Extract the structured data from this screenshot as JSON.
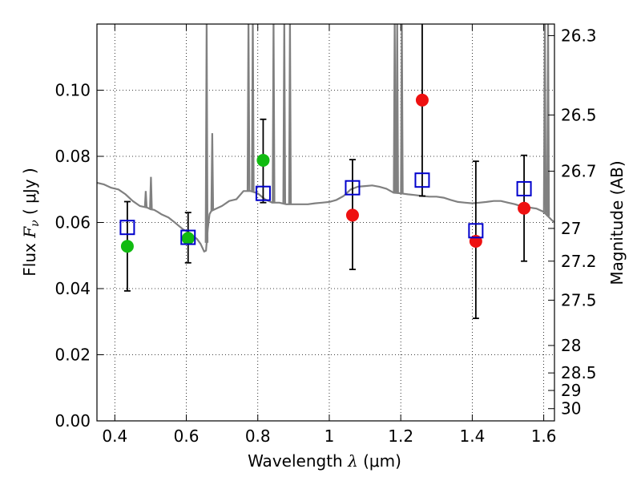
{
  "chart_data": {
    "type": "scatter",
    "xlabel": {
      "prefix": "Wavelength  ",
      "symbol": "λ",
      "unit": " (μm)"
    },
    "ylabel": {
      "prefix": "Flux  ",
      "symbol": "F",
      "sub": "ν",
      "unit": "  ( μJy )"
    },
    "y2label": "Magnitude (AB)",
    "xlim": [
      0.35,
      1.63
    ],
    "ylim": [
      0.0,
      0.12
    ],
    "xticks": [
      0.4,
      0.6,
      0.8,
      1.0,
      1.2,
      1.4,
      1.6
    ],
    "xtick_labels": [
      "0.4",
      "0.6",
      "0.8",
      "1",
      "1.2",
      "1.4",
      "1.6"
    ],
    "yticks": [
      0.0,
      0.02,
      0.04,
      0.06,
      0.08,
      0.1
    ],
    "ytick_labels": [
      "0.00",
      "0.02",
      "0.04",
      "0.06",
      "0.08",
      "0.10"
    ],
    "y2ticks": [
      {
        "flux": 0.1165,
        "label": "26.3"
      },
      {
        "flux": 0.0925,
        "label": "26.5"
      },
      {
        "flux": 0.0755,
        "label": "26.7"
      },
      {
        "flux": 0.0582,
        "label": "27"
      },
      {
        "flux": 0.0483,
        "label": "27.2"
      },
      {
        "flux": 0.0365,
        "label": "27.5"
      },
      {
        "flux": 0.0228,
        "label": "28"
      },
      {
        "flux": 0.0145,
        "label": "28.5"
      },
      {
        "flux": 0.0092,
        "label": "29"
      },
      {
        "flux": 0.0037,
        "label": "30"
      }
    ],
    "grid": true,
    "colors": {
      "model": "#808080",
      "model_photometry": "#0000cc",
      "detection": "#11bb11",
      "other": "#ee1111",
      "errorbar": "#000000"
    },
    "model_spectrum": {
      "x": [
        0.35,
        0.37,
        0.39,
        0.41,
        0.43,
        0.45,
        0.47,
        0.49,
        0.5,
        0.51,
        0.52,
        0.53,
        0.55,
        0.57,
        0.59,
        0.61,
        0.62,
        0.63,
        0.64,
        0.65,
        0.655,
        0.66,
        0.665,
        0.67,
        0.68,
        0.7,
        0.72,
        0.74,
        0.76,
        0.78,
        0.8,
        0.82,
        0.84,
        0.86,
        0.88,
        0.9,
        0.92,
        0.94,
        0.96,
        0.98,
        1.0,
        1.02,
        1.04,
        1.06,
        1.08,
        1.1,
        1.12,
        1.14,
        1.16,
        1.18,
        1.2,
        1.22,
        1.24,
        1.26,
        1.28,
        1.3,
        1.32,
        1.34,
        1.36,
        1.38,
        1.4,
        1.42,
        1.44,
        1.46,
        1.48,
        1.5,
        1.52,
        1.54,
        1.56,
        1.58,
        1.6,
        1.62,
        1.63
      ],
      "y": [
        0.072,
        0.0715,
        0.0705,
        0.07,
        0.0685,
        0.0665,
        0.065,
        0.0645,
        0.064,
        0.0638,
        0.0632,
        0.0625,
        0.0615,
        0.0598,
        0.058,
        0.0568,
        0.0558,
        0.055,
        0.0535,
        0.0512,
        0.0515,
        0.058,
        0.0625,
        0.0635,
        0.064,
        0.065,
        0.0665,
        0.067,
        0.0695,
        0.0695,
        0.0688,
        0.067,
        0.066,
        0.066,
        0.0655,
        0.0655,
        0.0655,
        0.0655,
        0.0658,
        0.066,
        0.0662,
        0.0668,
        0.068,
        0.07,
        0.0708,
        0.071,
        0.0712,
        0.0708,
        0.0702,
        0.069,
        0.0688,
        0.0685,
        0.0683,
        0.068,
        0.0678,
        0.0678,
        0.0675,
        0.0668,
        0.0662,
        0.066,
        0.0658,
        0.066,
        0.0662,
        0.0665,
        0.0665,
        0.066,
        0.0655,
        0.0648,
        0.0645,
        0.0642,
        0.0632,
        0.061,
        0.06
      ]
    },
    "emission_lines": [
      {
        "x": 0.4865,
        "peak": 0.0695
      },
      {
        "x": 0.501,
        "peak": 0.0738
      },
      {
        "x": 0.6568,
        "peak": 0.122
      },
      {
        "x": 0.6725,
        "peak": 0.087
      },
      {
        "x": 0.774,
        "peak": 0.122
      },
      {
        "x": 0.786,
        "peak": 0.122
      },
      {
        "x": 0.844,
        "peak": 0.122
      },
      {
        "x": 0.874,
        "peak": 0.122
      },
      {
        "x": 0.89,
        "peak": 0.122
      },
      {
        "x": 1.183,
        "peak": 0.122
      },
      {
        "x": 1.19,
        "peak": 0.122
      },
      {
        "x": 1.203,
        "peak": 0.122
      },
      {
        "x": 1.603,
        "peak": 0.122
      },
      {
        "x": 1.612,
        "peak": 0.122
      }
    ],
    "model_photometry": {
      "x": [
        0.435,
        0.605,
        0.815,
        1.065,
        1.26,
        1.41,
        1.545
      ],
      "y": [
        0.0585,
        0.0555,
        0.0688,
        0.0705,
        0.0728,
        0.0575,
        0.0702
      ]
    },
    "observed": [
      {
        "x": 0.435,
        "y": 0.0528,
        "err_low": 0.0393,
        "err_high": 0.0663,
        "group": "detection"
      },
      {
        "x": 0.605,
        "y": 0.0552,
        "err_low": 0.0478,
        "err_high": 0.063,
        "group": "detection"
      },
      {
        "x": 0.815,
        "y": 0.0788,
        "err_low": 0.066,
        "err_high": 0.0912,
        "group": "detection"
      },
      {
        "x": 1.065,
        "y": 0.0622,
        "err_low": 0.0458,
        "err_high": 0.079,
        "group": "other"
      },
      {
        "x": 1.26,
        "y": 0.097,
        "err_low": 0.068,
        "err_high": 0.125,
        "group": "other"
      },
      {
        "x": 1.41,
        "y": 0.0543,
        "err_low": 0.031,
        "err_high": 0.0785,
        "group": "other"
      },
      {
        "x": 1.545,
        "y": 0.0643,
        "err_low": 0.0483,
        "err_high": 0.0803,
        "group": "other"
      }
    ]
  }
}
